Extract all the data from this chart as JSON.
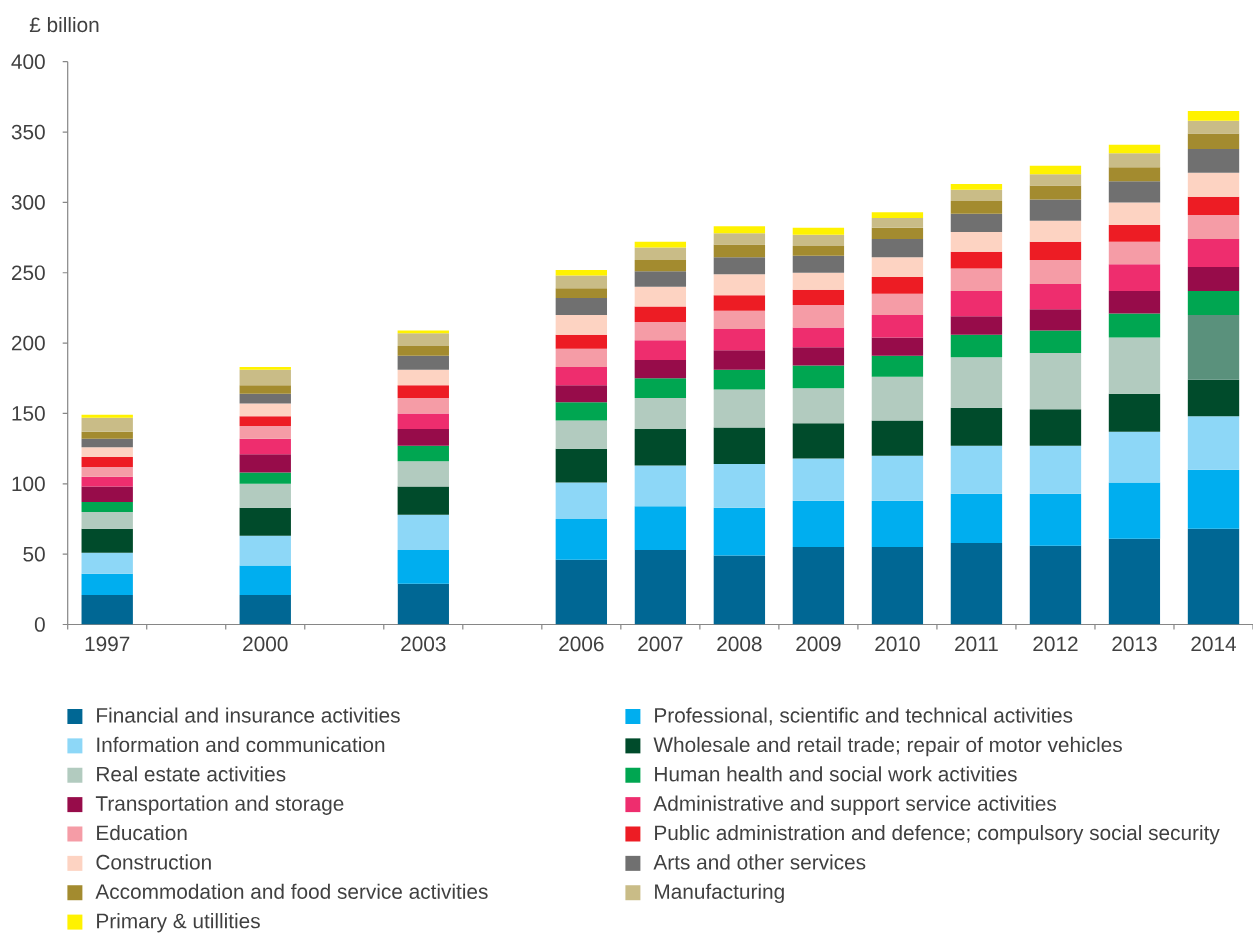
{
  "chart_data": {
    "type": "bar",
    "stacked": true,
    "ylabel": "£ billion",
    "categories": [
      "1997",
      null,
      "2000",
      null,
      "2003",
      null,
      "2006",
      "2007",
      "2008",
      "2009",
      "2010",
      "2011",
      "2012",
      "2013",
      "2014"
    ],
    "ylim": [
      0,
      400
    ],
    "yticks": [
      0,
      50,
      100,
      150,
      200,
      250,
      300,
      350,
      400
    ],
    "legend": "bottom",
    "series": [
      {
        "name": "Financial and insurance activities",
        "color": "#006794",
        "values": [
          21,
          null,
          21,
          null,
          29,
          null,
          46,
          53,
          49,
          55,
          55,
          58,
          56,
          61,
          68
        ]
      },
      {
        "name": "Professional, scientific and technical activities",
        "color": "#00aeef",
        "values": [
          15,
          null,
          21,
          null,
          24,
          null,
          29,
          31,
          34,
          33,
          33,
          35,
          37,
          40,
          42
        ]
      },
      {
        "name": "Information and communication",
        "color": "#8dd7f7",
        "values": [
          15,
          null,
          21,
          null,
          25,
          null,
          26,
          29,
          31,
          30,
          32,
          34,
          34,
          36,
          38
        ]
      },
      {
        "name": "Wholesale and retail trade; repair of motor vehicles",
        "color": "#004b2b",
        "values": [
          17,
          null,
          20,
          null,
          20,
          null,
          24,
          26,
          26,
          25,
          25,
          27,
          26,
          27,
          26
        ]
      },
      {
        "name": "Real estate activities",
        "color": "#b2cbbf",
        "values": [
          12,
          null,
          17,
          null,
          18,
          null,
          20,
          22,
          27,
          25,
          31,
          36,
          40,
          40,
          46
        ],
        "colors": [
          "#b2cbbf",
          null,
          "#b2cbbf",
          null,
          "#b2cbbf",
          null,
          "#b2cbbf",
          "#b2cbbf",
          "#b2cbbf",
          "#b2cbbf",
          "#b2cbbf",
          "#b2cbbf",
          "#b2cbbf",
          "#b2cbbf",
          "#5a917c"
        ]
      },
      {
        "name": "Human health and social work activities",
        "color": "#00a651",
        "values": [
          7,
          null,
          8,
          null,
          11,
          null,
          13,
          14,
          14,
          16,
          15,
          16,
          16,
          17,
          17
        ]
      },
      {
        "name": "Transportation and storage",
        "color": "#970c4a",
        "values": [
          11,
          null,
          13,
          null,
          12,
          null,
          12,
          13,
          14,
          13,
          13,
          13,
          15,
          16,
          17
        ]
      },
      {
        "name": "Administrative and support service activities",
        "color": "#ee2d6e",
        "values": [
          7,
          null,
          11,
          null,
          11,
          null,
          13,
          14,
          15,
          14,
          16,
          18,
          18,
          19,
          20
        ]
      },
      {
        "name": "Education",
        "color": "#f59ca6",
        "values": [
          7,
          null,
          9,
          null,
          11,
          null,
          13,
          13,
          13,
          16,
          15,
          16,
          17,
          16,
          17
        ]
      },
      {
        "name": "Public administration and defence; compulsory social security",
        "color": "#ed1c24",
        "values": [
          7,
          null,
          7,
          null,
          9,
          null,
          10,
          11,
          11,
          11,
          12,
          12,
          13,
          12,
          13
        ]
      },
      {
        "name": "Construction",
        "color": "#fdd3c2",
        "values": [
          7,
          null,
          9,
          null,
          11,
          null,
          14,
          14,
          15,
          12,
          14,
          14,
          15,
          16,
          17
        ]
      },
      {
        "name": "Arts and other services",
        "color": "#707070",
        "values": [
          6,
          null,
          7,
          null,
          10,
          null,
          12,
          11,
          12,
          12,
          13,
          13,
          15,
          15,
          17
        ]
      },
      {
        "name": "Accommodation and food service activities",
        "color": "#a38b2f",
        "values": [
          5,
          null,
          6,
          null,
          7,
          null,
          7,
          8,
          9,
          7,
          8,
          9,
          10,
          10,
          11
        ]
      },
      {
        "name": "Manufacturing",
        "color": "#c9bc87",
        "values": [
          10,
          null,
          11,
          null,
          9,
          null,
          9,
          9,
          8,
          8,
          7,
          8,
          8,
          10,
          9
        ]
      },
      {
        "name": "Primary & utillities",
        "color": "#fff200",
        "values": [
          2,
          null,
          2,
          null,
          2,
          null,
          4,
          4,
          5,
          5,
          4,
          4,
          6,
          6,
          7
        ]
      }
    ]
  }
}
